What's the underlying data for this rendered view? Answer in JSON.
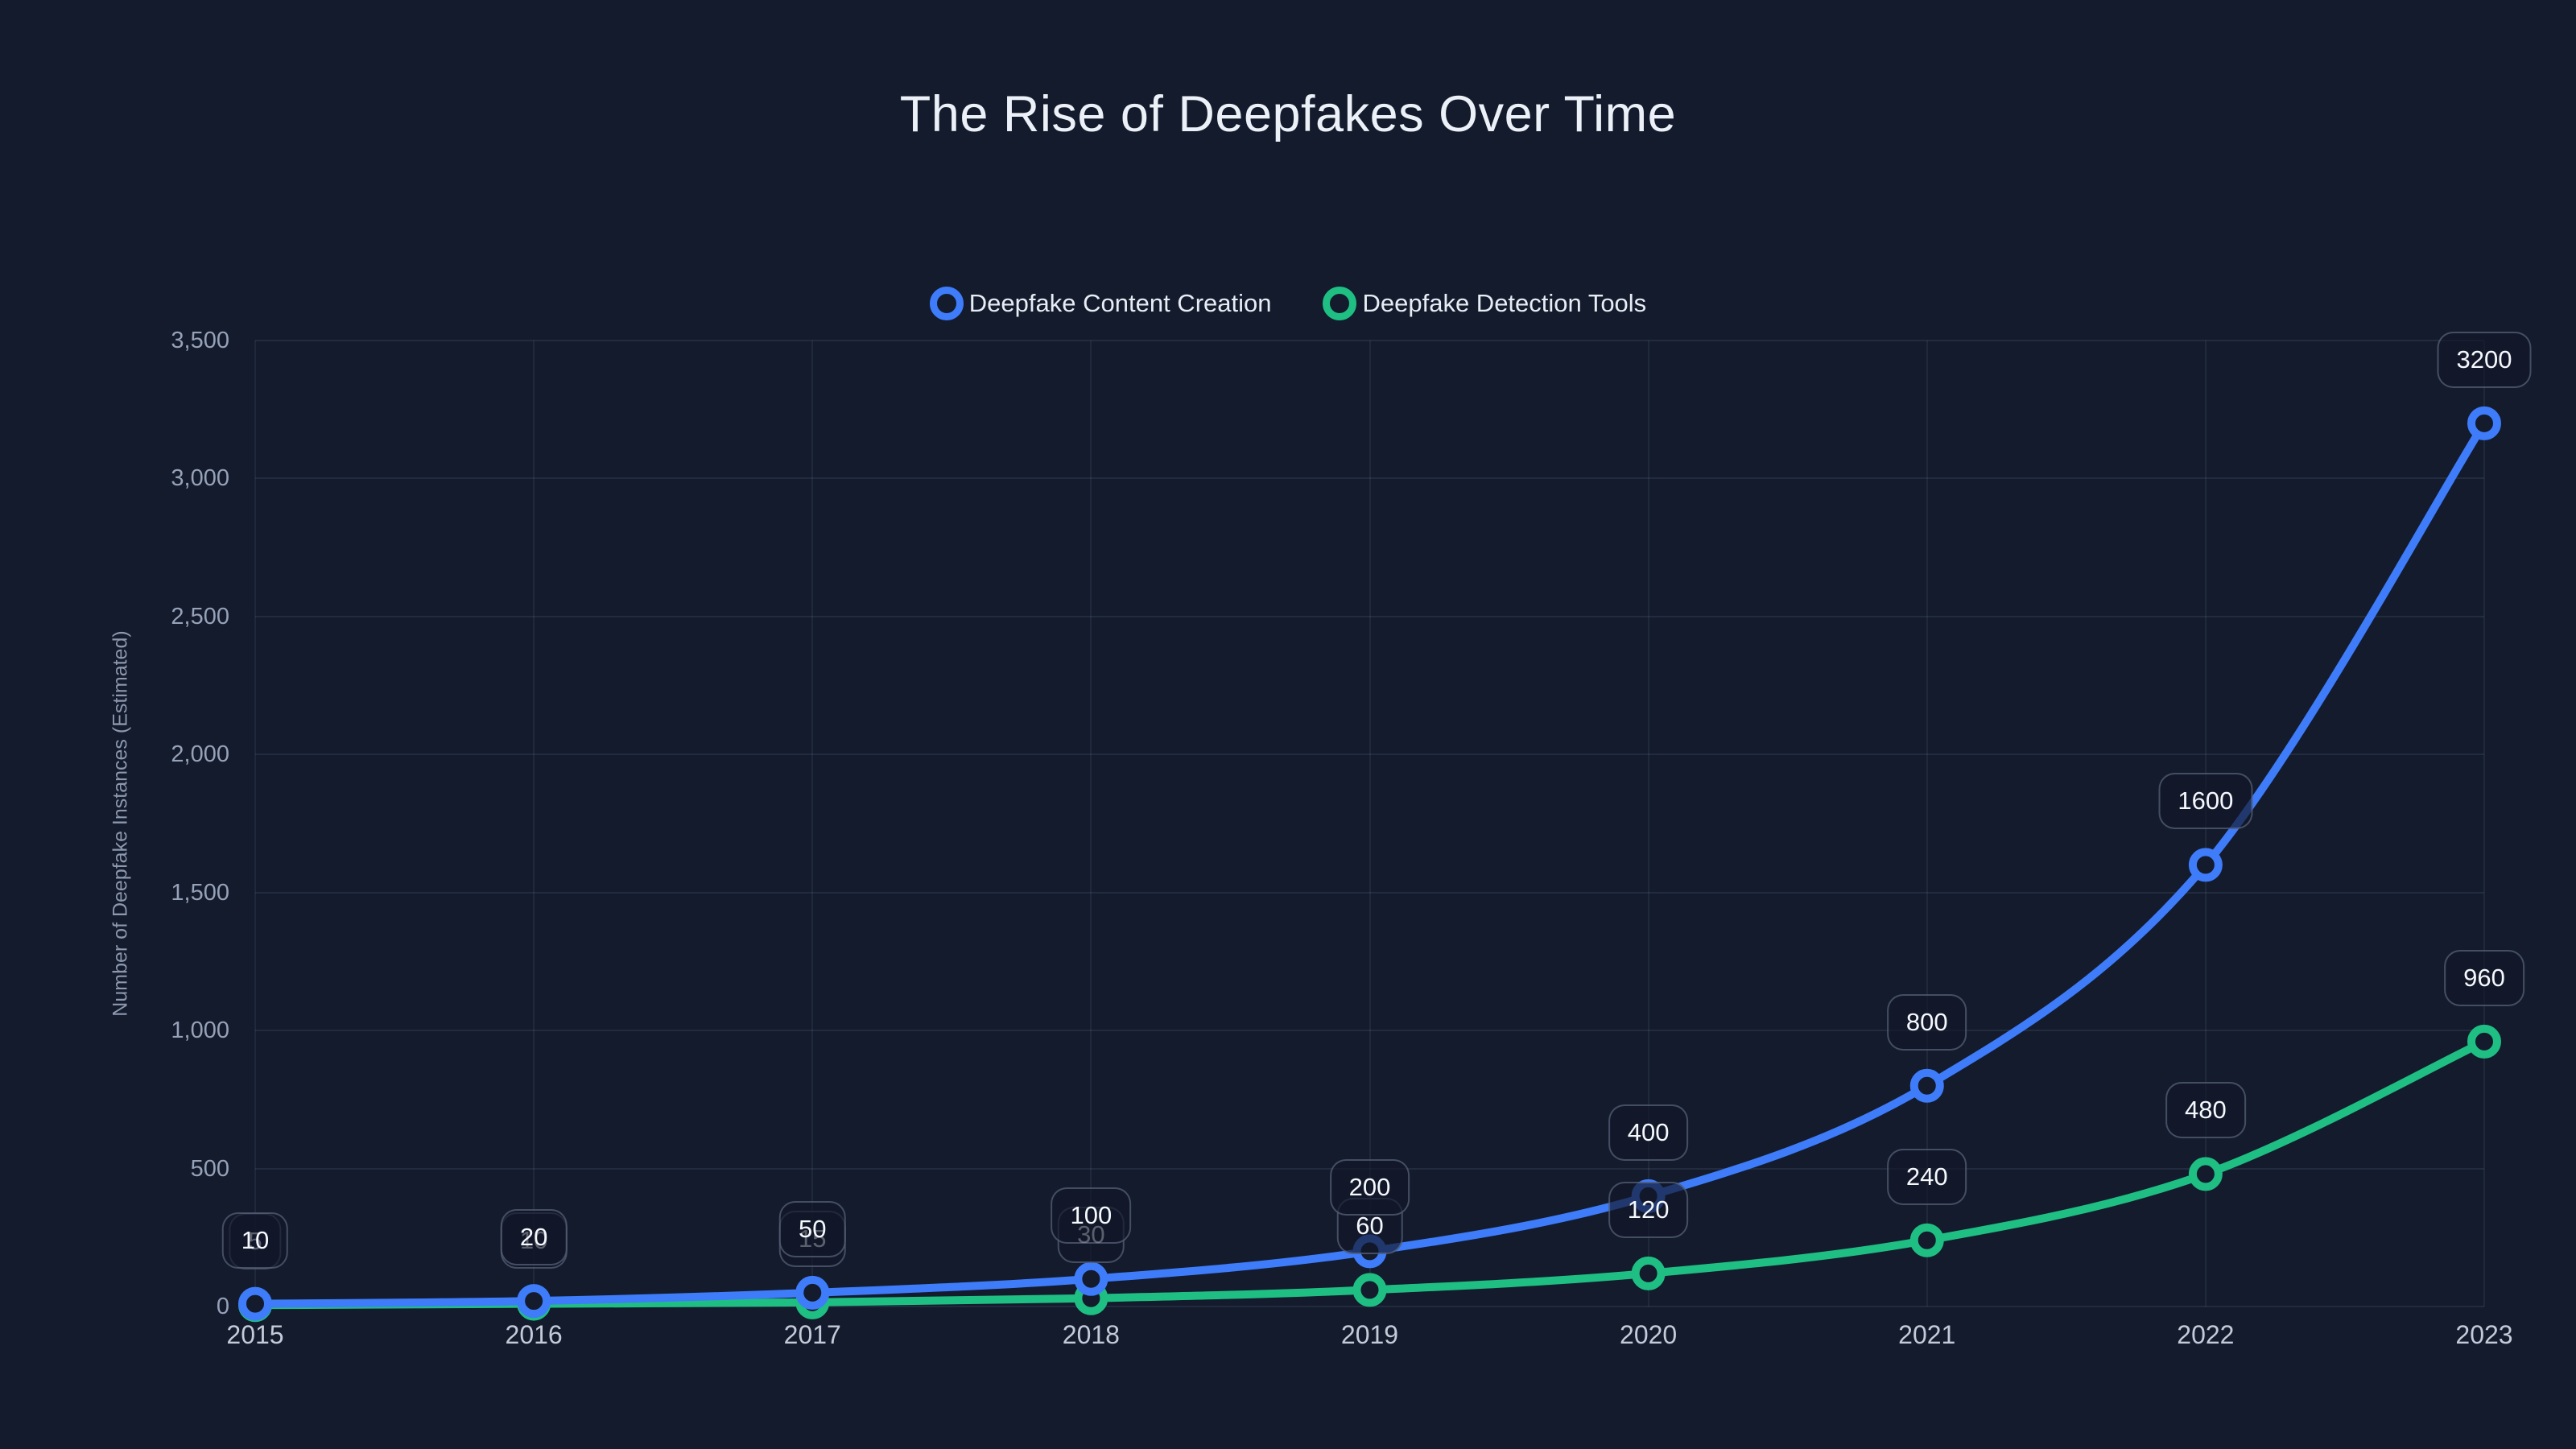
{
  "title": "The Rise of Deepfakes Over Time",
  "page": {
    "background": "#131B2D"
  },
  "legend": {
    "items": [
      {
        "label": "Deepfake Content Creation",
        "color": "#3E7CFA"
      },
      {
        "label": "Deepfake Detection Tools",
        "color": "#1FBE83"
      }
    ]
  },
  "chart_data": {
    "type": "line",
    "title": "The Rise of Deepfakes Over Time",
    "categories": [
      "2015",
      "2016",
      "2017",
      "2018",
      "2019",
      "2020",
      "2021",
      "2022",
      "2023"
    ],
    "series": [
      {
        "name": "Deepfake Content Creation",
        "color": "#3E7CFA",
        "values": [
          10,
          20,
          50,
          100,
          200,
          400,
          800,
          1600,
          3200
        ],
        "labels": [
          "10",
          "20",
          "50",
          "100",
          "200",
          "400",
          "800",
          "1600",
          "3200"
        ]
      },
      {
        "name": "Deepfake Detection Tools",
        "color": "#1FBE83",
        "values": [
          5,
          10,
          15,
          30,
          60,
          120,
          240,
          480,
          960
        ],
        "labels": [
          "5",
          "10",
          "15",
          "30",
          "60",
          "120",
          "240",
          "480",
          "960"
        ]
      }
    ],
    "xlabel": "",
    "ylabel": "Number of Deepfake Instances (Estimated)",
    "ylim": [
      0,
      3500
    ],
    "yticks": [
      0,
      500,
      1000,
      1500,
      2000,
      2500,
      3000,
      3500
    ],
    "ytick_labels": [
      "0",
      "500",
      "1,000",
      "1,500",
      "2,000",
      "2,500",
      "3,000",
      "3,500"
    ],
    "grid": true,
    "legend_position": "top",
    "point_style": "hollow-circle",
    "line_tension": "smooth"
  },
  "colors": {
    "background": "#131B2D",
    "grid": "rgba(148,163,184,0.13)",
    "y_tick_text": "#96A2B8",
    "x_tick_text": "#C3CBD8",
    "title_text": "#ECF1F8",
    "axis_title_text": "#8C98AE",
    "data_label_text": "#F5F8FC",
    "data_label_bg": "rgba(17,24,41,0.68)",
    "data_label_border": "rgba(141,153,178,0.42)"
  }
}
